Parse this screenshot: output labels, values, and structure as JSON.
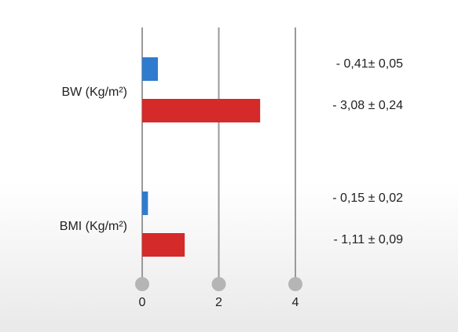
{
  "chart_data": {
    "type": "hbar",
    "categories": [
      "BW (Kg/m²)",
      "BMI (Kg/m²)"
    ],
    "series": [
      {
        "color": "#2f7ccf",
        "values": [
          0.41,
          0.15
        ],
        "value_labels": [
          "- 0,41± 0,05",
          "- 0,15 ± 0,02"
        ]
      },
      {
        "color": "#d42a2a",
        "values": [
          3.08,
          1.11
        ],
        "value_labels": [
          "- 3,08 ± 0,24",
          "- 1,11 ± 0,09"
        ]
      }
    ],
    "xlim": [
      0,
      4
    ],
    "xticks": [
      0,
      2,
      4
    ],
    "grid": true
  }
}
